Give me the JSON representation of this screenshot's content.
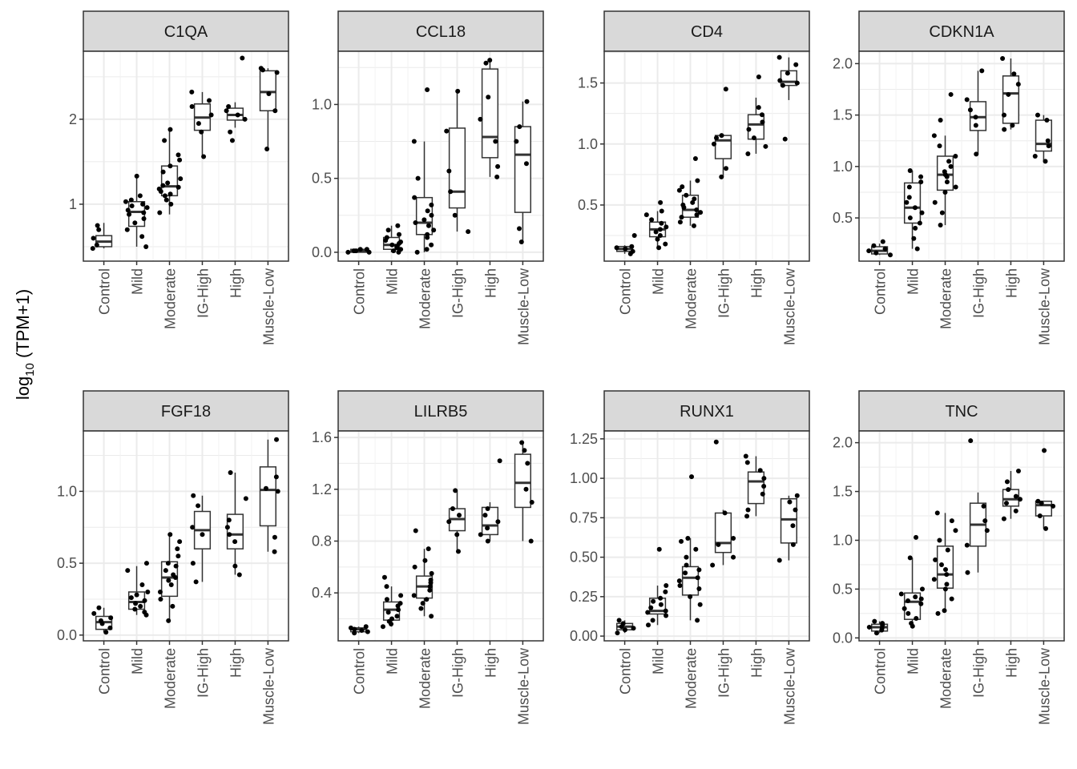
{
  "figure": {
    "ylabel_main": "log",
    "ylabel_sub": "10",
    "ylabel_tail": " (TPM+1)"
  },
  "chart_data": [
    {
      "type": "box",
      "title": "C1QA",
      "categories": [
        "Control",
        "Mild",
        "Moderate",
        "IG-High",
        "High",
        "Muscle-Low"
      ],
      "ylim": [
        0.33,
        2.8
      ],
      "yticks": [
        1,
        2
      ],
      "ytick_labels": [
        "1",
        "2"
      ],
      "boxes": [
        {
          "q1": 0.5,
          "median": 0.56,
          "q3": 0.63,
          "whisker_low": 0.48,
          "whisker_high": 0.78
        },
        {
          "q1": 0.74,
          "median": 0.91,
          "q3": 1.03,
          "whisker_low": 0.5,
          "whisker_high": 1.33
        },
        {
          "q1": 1.1,
          "median": 1.21,
          "q3": 1.45,
          "whisker_low": 0.88,
          "whisker_high": 1.88
        },
        {
          "q1": 1.87,
          "median": 2.02,
          "q3": 2.18,
          "whisker_low": 1.56,
          "whisker_high": 2.32
        },
        {
          "q1": 1.99,
          "median": 2.05,
          "q3": 2.13,
          "whisker_low": 1.9,
          "whisker_high": 2.2
        },
        {
          "q1": 2.1,
          "median": 2.32,
          "q3": 2.57,
          "whisker_low": 1.65,
          "whisker_high": 2.6
        }
      ],
      "points": [
        [
          0.48,
          0.52,
          0.6,
          0.7,
          0.75
        ],
        [
          0.5,
          0.62,
          0.7,
          0.78,
          0.83,
          0.88,
          0.9,
          0.93,
          0.96,
          0.98,
          1.0,
          1.03,
          1.05,
          1.1,
          1.33
        ],
        [
          0.9,
          1.0,
          1.05,
          1.1,
          1.12,
          1.15,
          1.18,
          1.2,
          1.22,
          1.25,
          1.3,
          1.38,
          1.45,
          1.52,
          1.58,
          1.75,
          1.88
        ],
        [
          1.56,
          1.85,
          1.95,
          2.05,
          2.15,
          2.22,
          2.32
        ],
        [
          1.75,
          1.85,
          2.0,
          2.05,
          2.1,
          2.15,
          2.72
        ],
        [
          1.65,
          2.1,
          2.3,
          2.55,
          2.58,
          2.6
        ]
      ]
    },
    {
      "type": "box",
      "title": "CCL18",
      "categories": [
        "Control",
        "Mild",
        "Moderate",
        "IG-High",
        "High",
        "Muscle-Low"
      ],
      "ylim": [
        -0.06,
        1.36
      ],
      "yticks": [
        0,
        0.5,
        1.0
      ],
      "ytick_labels": [
        "0.0",
        "0.5",
        "1.0"
      ],
      "boxes": [
        {
          "q1": 0.0,
          "median": 0.01,
          "q3": 0.02,
          "whisker_low": 0.0,
          "whisker_high": 0.03
        },
        {
          "q1": 0.02,
          "median": 0.05,
          "q3": 0.1,
          "whisker_low": 0.0,
          "whisker_high": 0.18
        },
        {
          "q1": 0.12,
          "median": 0.2,
          "q3": 0.37,
          "whisker_low": 0.0,
          "whisker_high": 0.75
        },
        {
          "q1": 0.3,
          "median": 0.41,
          "q3": 0.84,
          "whisker_low": 0.14,
          "whisker_high": 1.09
        },
        {
          "q1": 0.64,
          "median": 0.78,
          "q3": 1.24,
          "whisker_low": 0.51,
          "whisker_high": 1.3
        },
        {
          "q1": 0.27,
          "median": 0.66,
          "q3": 0.85,
          "whisker_low": 0.07,
          "whisker_high": 1.02
        }
      ],
      "points": [
        [
          0.0,
          0.0,
          0.01,
          0.01,
          0.02,
          0.02
        ],
        [
          0.0,
          0.01,
          0.02,
          0.03,
          0.04,
          0.05,
          0.06,
          0.07,
          0.08,
          0.1,
          0.12,
          0.15,
          0.18
        ],
        [
          0.0,
          0.02,
          0.05,
          0.1,
          0.12,
          0.15,
          0.18,
          0.2,
          0.22,
          0.25,
          0.28,
          0.32,
          0.37,
          0.5,
          0.75,
          1.1
        ],
        [
          0.14,
          0.25,
          0.41,
          0.55,
          0.82,
          1.09
        ],
        [
          0.51,
          0.58,
          0.75,
          0.9,
          1.05,
          1.28,
          1.3
        ],
        [
          0.07,
          0.16,
          0.6,
          0.75,
          0.85,
          1.02
        ]
      ]
    },
    {
      "type": "box",
      "title": "CD4",
      "categories": [
        "Control",
        "Mild",
        "Moderate",
        "IG-High",
        "High",
        "Muscle-Low"
      ],
      "ylim": [
        0.04,
        1.76
      ],
      "yticks": [
        0.5,
        1.0,
        1.5
      ],
      "ytick_labels": [
        "0.5",
        "1.0",
        "1.5"
      ],
      "boxes": [
        {
          "q1": 0.12,
          "median": 0.14,
          "q3": 0.16,
          "whisker_low": 0.1,
          "whisker_high": 0.17
        },
        {
          "q1": 0.24,
          "median": 0.3,
          "q3": 0.36,
          "whisker_low": 0.15,
          "whisker_high": 0.45
        },
        {
          "q1": 0.4,
          "median": 0.46,
          "q3": 0.58,
          "whisker_low": 0.33,
          "whisker_high": 0.7
        },
        {
          "q1": 0.88,
          "median": 1.03,
          "q3": 1.07,
          "whisker_low": 0.73,
          "whisker_high": 1.08
        },
        {
          "q1": 1.04,
          "median": 1.16,
          "q3": 1.24,
          "whisker_low": 0.92,
          "whisker_high": 1.38
        },
        {
          "q1": 1.48,
          "median": 1.51,
          "q3": 1.6,
          "whisker_low": 1.36,
          "whisker_high": 1.71
        }
      ],
      "points": [
        [
          0.1,
          0.12,
          0.14,
          0.15,
          0.16,
          0.25
        ],
        [
          0.15,
          0.18,
          0.22,
          0.25,
          0.28,
          0.3,
          0.32,
          0.35,
          0.38,
          0.42,
          0.45,
          0.52
        ],
        [
          0.33,
          0.36,
          0.4,
          0.42,
          0.44,
          0.46,
          0.48,
          0.5,
          0.52,
          0.55,
          0.58,
          0.62,
          0.65,
          0.7,
          0.88
        ],
        [
          0.73,
          0.8,
          1.0,
          1.05,
          1.07,
          1.45
        ],
        [
          0.92,
          0.98,
          1.05,
          1.12,
          1.18,
          1.24,
          1.3,
          1.55
        ],
        [
          1.04,
          1.48,
          1.5,
          1.52,
          1.58,
          1.65,
          1.71
        ]
      ]
    },
    {
      "type": "box",
      "title": "CDKN1A",
      "categories": [
        "Control",
        "Mild",
        "Moderate",
        "IG-High",
        "High",
        "Muscle-Low"
      ],
      "ylim": [
        0.08,
        2.12
      ],
      "yticks": [
        0.5,
        1.0,
        1.5,
        2.0
      ],
      "ytick_labels": [
        "0.5",
        "1.0",
        "1.5",
        "2.0"
      ],
      "boxes": [
        {
          "q1": 0.15,
          "median": 0.18,
          "q3": 0.22,
          "whisker_low": 0.14,
          "whisker_high": 0.25
        },
        {
          "q1": 0.45,
          "median": 0.6,
          "q3": 0.84,
          "whisker_low": 0.2,
          "whisker_high": 0.96
        },
        {
          "q1": 0.77,
          "median": 0.92,
          "q3": 1.1,
          "whisker_low": 0.43,
          "whisker_high": 1.3
        },
        {
          "q1": 1.35,
          "median": 1.48,
          "q3": 1.63,
          "whisker_low": 1.12,
          "whisker_high": 1.93
        },
        {
          "q1": 1.42,
          "median": 1.71,
          "q3": 1.88,
          "whisker_low": 1.36,
          "whisker_high": 2.05
        },
        {
          "q1": 1.15,
          "median": 1.22,
          "q3": 1.45,
          "whisker_low": 1.05,
          "whisker_high": 1.5
        }
      ],
      "points": [
        [
          0.14,
          0.16,
          0.18,
          0.2,
          0.23,
          0.27
        ],
        [
          0.2,
          0.3,
          0.4,
          0.45,
          0.5,
          0.55,
          0.6,
          0.65,
          0.7,
          0.8,
          0.85,
          0.9,
          0.96
        ],
        [
          0.43,
          0.55,
          0.65,
          0.75,
          0.8,
          0.85,
          0.9,
          0.92,
          0.95,
          1.0,
          1.05,
          1.1,
          1.2,
          1.3,
          1.45,
          1.7
        ],
        [
          1.12,
          1.4,
          1.48,
          1.55,
          1.65,
          1.93
        ],
        [
          1.36,
          1.4,
          1.5,
          1.7,
          1.8,
          1.9,
          2.05
        ],
        [
          1.05,
          1.1,
          1.2,
          1.25,
          1.45,
          1.5
        ]
      ]
    },
    {
      "type": "box",
      "title": "FGF18",
      "categories": [
        "Control",
        "Mild",
        "Moderate",
        "IG-High",
        "High",
        "Muscle-Low"
      ],
      "ylim": [
        -0.04,
        1.42
      ],
      "yticks": [
        0,
        0.5,
        1.0
      ],
      "ytick_labels": [
        "0.0",
        "0.5",
        "1.0"
      ],
      "boxes": [
        {
          "q1": 0.04,
          "median": 0.09,
          "q3": 0.13,
          "whisker_low": 0.02,
          "whisker_high": 0.19
        },
        {
          "q1": 0.18,
          "median": 0.23,
          "q3": 0.3,
          "whisker_low": 0.14,
          "whisker_high": 0.48
        },
        {
          "q1": 0.27,
          "median": 0.4,
          "q3": 0.51,
          "whisker_low": 0.1,
          "whisker_high": 0.71
        },
        {
          "q1": 0.6,
          "median": 0.73,
          "q3": 0.86,
          "whisker_low": 0.37,
          "whisker_high": 0.97
        },
        {
          "q1": 0.6,
          "median": 0.7,
          "q3": 0.84,
          "whisker_low": 0.42,
          "whisker_high": 1.13
        },
        {
          "q1": 0.76,
          "median": 1.01,
          "q3": 1.17,
          "whisker_low": 0.58,
          "whisker_high": 1.36
        }
      ],
      "points": [
        [
          0.02,
          0.05,
          0.08,
          0.1,
          0.12,
          0.15,
          0.19
        ],
        [
          0.14,
          0.16,
          0.18,
          0.2,
          0.22,
          0.24,
          0.26,
          0.28,
          0.3,
          0.35,
          0.45,
          0.5
        ],
        [
          0.1,
          0.2,
          0.25,
          0.3,
          0.35,
          0.38,
          0.4,
          0.42,
          0.45,
          0.48,
          0.5,
          0.55,
          0.6,
          0.65,
          0.7
        ],
        [
          0.37,
          0.5,
          0.7,
          0.75,
          0.9,
          0.97
        ],
        [
          0.42,
          0.48,
          0.65,
          0.7,
          0.75,
          0.8,
          0.95,
          1.13
        ],
        [
          0.58,
          0.68,
          1.0,
          1.02,
          1.1,
          1.36
        ]
      ]
    },
    {
      "type": "box",
      "title": "LILRB5",
      "categories": [
        "Control",
        "Mild",
        "Moderate",
        "IG-High",
        "High",
        "Muscle-Low"
      ],
      "ylim": [
        0.03,
        1.65
      ],
      "yticks": [
        0.4,
        0.8,
        1.2,
        1.6
      ],
      "ytick_labels": [
        "0.4",
        "0.8",
        "1.2",
        "1.6"
      ],
      "boxes": [
        {
          "q1": 0.1,
          "median": 0.12,
          "q3": 0.13,
          "whisker_low": 0.09,
          "whisker_high": 0.14
        },
        {
          "q1": 0.19,
          "median": 0.27,
          "q3": 0.33,
          "whisker_low": 0.14,
          "whisker_high": 0.45
        },
        {
          "q1": 0.36,
          "median": 0.45,
          "q3": 0.53,
          "whisker_low": 0.22,
          "whisker_high": 0.74
        },
        {
          "q1": 0.88,
          "median": 0.97,
          "q3": 1.05,
          "whisker_low": 0.72,
          "whisker_high": 1.19
        },
        {
          "q1": 0.85,
          "median": 0.92,
          "q3": 1.06,
          "whisker_low": 0.8,
          "whisker_high": 1.1
        },
        {
          "q1": 1.06,
          "median": 1.25,
          "q3": 1.47,
          "whisker_low": 0.8,
          "whisker_high": 1.56
        }
      ],
      "points": [
        [
          0.09,
          0.1,
          0.11,
          0.12,
          0.13,
          0.14
        ],
        [
          0.14,
          0.16,
          0.18,
          0.2,
          0.22,
          0.25,
          0.27,
          0.3,
          0.32,
          0.35,
          0.38,
          0.45,
          0.52
        ],
        [
          0.22,
          0.28,
          0.32,
          0.35,
          0.38,
          0.42,
          0.45,
          0.48,
          0.5,
          0.55,
          0.6,
          0.65,
          0.74,
          0.88
        ],
        [
          0.72,
          0.85,
          0.95,
          1.0,
          1.05,
          1.19
        ],
        [
          0.8,
          0.85,
          0.9,
          0.95,
          1.0,
          1.05,
          1.42
        ],
        [
          0.8,
          1.1,
          1.2,
          1.4,
          1.5,
          1.56
        ]
      ]
    },
    {
      "type": "box",
      "title": "RUNX1",
      "categories": [
        "Control",
        "Mild",
        "Moderate",
        "IG-High",
        "High",
        "Muscle-Low"
      ],
      "ylim": [
        -0.03,
        1.3
      ],
      "yticks": [
        0,
        0.25,
        0.5,
        0.75,
        1.0,
        1.25
      ],
      "ytick_labels": [
        "0.00",
        "0.25",
        "0.50",
        "0.75",
        "1.00",
        "1.25"
      ],
      "boxes": [
        {
          "q1": 0.04,
          "median": 0.06,
          "q3": 0.08,
          "whisker_low": 0.02,
          "whisker_high": 0.1
        },
        {
          "q1": 0.14,
          "median": 0.16,
          "q3": 0.24,
          "whisker_low": 0.07,
          "whisker_high": 0.32
        },
        {
          "q1": 0.26,
          "median": 0.37,
          "q3": 0.44,
          "whisker_low": 0.1,
          "whisker_high": 0.62
        },
        {
          "q1": 0.53,
          "median": 0.59,
          "q3": 0.78,
          "whisker_low": 0.45,
          "whisker_high": 0.8
        },
        {
          "q1": 0.84,
          "median": 0.98,
          "q3": 1.04,
          "whisker_low": 0.76,
          "whisker_high": 1.14
        },
        {
          "q1": 0.59,
          "median": 0.74,
          "q3": 0.87,
          "whisker_low": 0.48,
          "whisker_high": 0.89
        }
      ],
      "points": [
        [
          0.02,
          0.04,
          0.05,
          0.06,
          0.08,
          0.1
        ],
        [
          0.07,
          0.1,
          0.13,
          0.15,
          0.16,
          0.18,
          0.2,
          0.22,
          0.24,
          0.28,
          0.32,
          0.55
        ],
        [
          0.1,
          0.2,
          0.25,
          0.3,
          0.32,
          0.35,
          0.37,
          0.4,
          0.42,
          0.45,
          0.5,
          0.55,
          0.6,
          0.62,
          1.01
        ],
        [
          0.45,
          0.5,
          0.58,
          0.62,
          0.78,
          1.23
        ],
        [
          0.76,
          0.8,
          0.9,
          0.95,
          1.0,
          1.05,
          1.1,
          1.14
        ],
        [
          0.48,
          0.58,
          0.7,
          0.8,
          0.85,
          0.89
        ]
      ]
    },
    {
      "type": "box",
      "title": "TNC",
      "categories": [
        "Control",
        "Mild",
        "Moderate",
        "IG-High",
        "High",
        "Muscle-Low"
      ],
      "ylim": [
        -0.03,
        2.12
      ],
      "yticks": [
        0,
        0.5,
        1.0,
        1.5,
        2.0
      ],
      "ytick_labels": [
        "0.0",
        "0.5",
        "1.0",
        "1.5",
        "2.0"
      ],
      "boxes": [
        {
          "q1": 0.07,
          "median": 0.11,
          "q3": 0.14,
          "whisker_low": 0.05,
          "whisker_high": 0.17
        },
        {
          "q1": 0.19,
          "median": 0.37,
          "q3": 0.46,
          "whisker_low": 0.12,
          "whisker_high": 0.82
        },
        {
          "q1": 0.51,
          "median": 0.65,
          "q3": 0.94,
          "whisker_low": 0.28,
          "whisker_high": 1.28
        },
        {
          "q1": 0.94,
          "median": 1.16,
          "q3": 1.38,
          "whisker_low": 0.67,
          "whisker_high": 1.49
        },
        {
          "q1": 1.35,
          "median": 1.42,
          "q3": 1.52,
          "whisker_low": 1.22,
          "whisker_high": 1.71
        },
        {
          "q1": 1.25,
          "median": 1.36,
          "q3": 1.4,
          "whisker_low": 1.12,
          "whisker_high": 1.4
        }
      ],
      "points": [
        [
          0.05,
          0.08,
          0.1,
          0.11,
          0.13,
          0.15,
          0.17
        ],
        [
          0.12,
          0.15,
          0.2,
          0.25,
          0.3,
          0.35,
          0.38,
          0.4,
          0.42,
          0.45,
          0.5,
          0.82,
          1.03
        ],
        [
          0.25,
          0.28,
          0.4,
          0.5,
          0.55,
          0.6,
          0.65,
          0.7,
          0.75,
          0.8,
          0.9,
          1.0,
          1.1,
          1.2,
          1.28
        ],
        [
          0.67,
          0.95,
          1.1,
          1.2,
          1.35,
          2.02
        ],
        [
          1.22,
          1.3,
          1.38,
          1.42,
          1.45,
          1.52,
          1.6,
          1.71
        ],
        [
          1.12,
          1.25,
          1.35,
          1.38,
          1.4,
          1.92
        ]
      ]
    }
  ]
}
